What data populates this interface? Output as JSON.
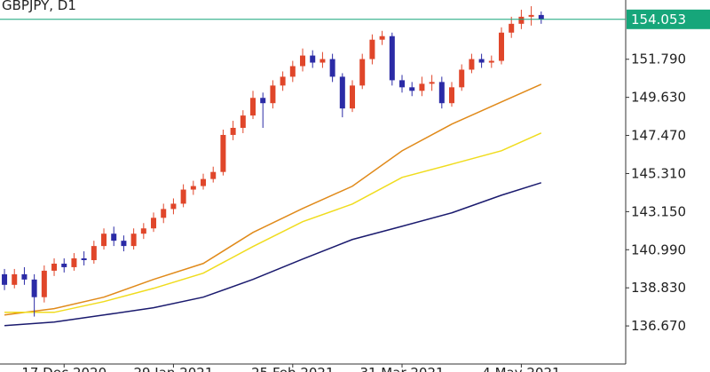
{
  "chart_data": {
    "type": "candlestick",
    "title": "GBPJPY, D1",
    "open": [
      139.6,
      139.0,
      139.6,
      139.3,
      138.3,
      139.8,
      140.2,
      140.0,
      140.5,
      140.4,
      141.2,
      141.9,
      141.5,
      141.2,
      141.9,
      142.2,
      142.8,
      143.3,
      143.6,
      144.4,
      144.6,
      145.0,
      145.4,
      147.5,
      147.9,
      148.6,
      149.6,
      149.3,
      150.3,
      150.8,
      151.4,
      152.0,
      151.6,
      151.8,
      150.8,
      149.0,
      150.3,
      151.8,
      152.9,
      153.1,
      150.6,
      150.2,
      150.0,
      150.4,
      150.5,
      149.3,
      150.2,
      151.2,
      151.8,
      151.6,
      151.7,
      153.3,
      153.8,
      154.2,
      154.3
    ],
    "high": [
      139.9,
      139.9,
      140.0,
      139.6,
      140.1,
      140.5,
      140.5,
      140.8,
      140.9,
      141.5,
      142.2,
      142.3,
      141.8,
      142.2,
      142.5,
      143.1,
      143.6,
      143.9,
      144.7,
      144.9,
      145.3,
      145.7,
      147.8,
      148.3,
      148.9,
      150.0,
      149.9,
      150.6,
      151.1,
      151.7,
      152.4,
      152.3,
      152.2,
      152.1,
      151.0,
      150.6,
      152.1,
      153.2,
      153.4,
      153.3,
      150.9,
      150.5,
      150.8,
      150.9,
      150.8,
      150.5,
      151.5,
      152.1,
      152.1,
      152.0,
      153.6,
      154.2,
      154.6,
      154.8,
      154.5
    ],
    "low": [
      138.7,
      138.8,
      139.0,
      137.2,
      138.0,
      139.5,
      139.7,
      139.8,
      140.1,
      140.2,
      141.0,
      141.2,
      140.9,
      141.0,
      141.6,
      142.0,
      142.5,
      143.0,
      143.4,
      144.1,
      144.4,
      144.8,
      145.2,
      147.2,
      147.6,
      148.4,
      147.9,
      149.0,
      150.0,
      150.5,
      151.1,
      151.3,
      151.3,
      150.5,
      148.5,
      148.8,
      150.1,
      151.5,
      152.6,
      150.3,
      149.9,
      149.7,
      149.7,
      150.0,
      149.0,
      149.1,
      150.0,
      151.0,
      151.3,
      151.3,
      151.5,
      153.0,
      153.5,
      153.7,
      153.8
    ],
    "close": [
      139.0,
      139.6,
      139.3,
      138.3,
      139.8,
      140.2,
      140.0,
      140.5,
      140.4,
      141.2,
      141.9,
      141.5,
      141.2,
      141.9,
      142.2,
      142.8,
      143.3,
      143.6,
      144.4,
      144.6,
      145.0,
      145.4,
      147.5,
      147.9,
      148.6,
      149.6,
      149.3,
      150.3,
      150.8,
      151.4,
      152.0,
      151.6,
      151.8,
      150.8,
      149.0,
      150.3,
      151.8,
      152.9,
      153.1,
      150.6,
      150.2,
      150.0,
      150.4,
      150.5,
      149.3,
      150.2,
      151.2,
      151.8,
      151.6,
      151.7,
      153.3,
      153.8,
      154.2,
      154.3,
      154.05
    ],
    "up_color": "#e0462a",
    "down_color": "#2b2ba6",
    "lines": [
      {
        "color": "#e08a1a",
        "x": [
          0,
          5,
          10,
          15,
          20,
          25,
          30,
          35,
          40,
          45,
          50,
          54
        ],
        "values": [
          137.29,
          137.65,
          138.3,
          139.31,
          140.21,
          141.97,
          143.33,
          144.59,
          146.6,
          148.11,
          149.37,
          150.37
        ]
      },
      {
        "color": "#f0dc1e",
        "x": [
          0,
          5,
          10,
          15,
          20,
          25,
          30,
          35,
          40,
          45,
          50,
          54
        ],
        "values": [
          137.44,
          137.44,
          138.05,
          138.8,
          139.66,
          141.17,
          142.58,
          143.58,
          145.09,
          145.84,
          146.6,
          147.61
        ]
      },
      {
        "color": "#1a1a6e",
        "x": [
          0,
          5,
          10,
          15,
          20,
          25,
          30,
          35,
          40,
          45,
          50,
          54
        ],
        "values": [
          136.69,
          136.89,
          137.29,
          137.7,
          138.3,
          139.31,
          140.46,
          141.57,
          142.32,
          143.08,
          144.08,
          144.79
        ]
      }
    ],
    "current_price": {
      "value": 154.053,
      "label": "154.053",
      "color": "#16a67a"
    },
    "ylim": [
      134.51,
      155.15
    ],
    "yticks": [
      {
        "value": 136.67,
        "label": "136.670"
      },
      {
        "value": 138.83,
        "label": "138.830"
      },
      {
        "value": 140.99,
        "label": "140.990"
      },
      {
        "value": 143.15,
        "label": "143.150"
      },
      {
        "value": 145.31,
        "label": "145.310"
      },
      {
        "value": 147.47,
        "label": "147.470"
      },
      {
        "value": 149.63,
        "label": "149.630"
      },
      {
        "value": 151.79,
        "label": "151.790"
      }
    ],
    "xlim": [
      -0.45,
      62.5
    ],
    "xticks": [
      {
        "value": 6,
        "label": "17 Dec 2020"
      },
      {
        "value": 17,
        "label": "29 Jan 2021"
      },
      {
        "value": 29,
        "label": "25 Feb 2021"
      },
      {
        "value": 40,
        "label": "31 Mar 2021"
      },
      {
        "value": 52,
        "label": "4 May 2021"
      }
    ]
  }
}
